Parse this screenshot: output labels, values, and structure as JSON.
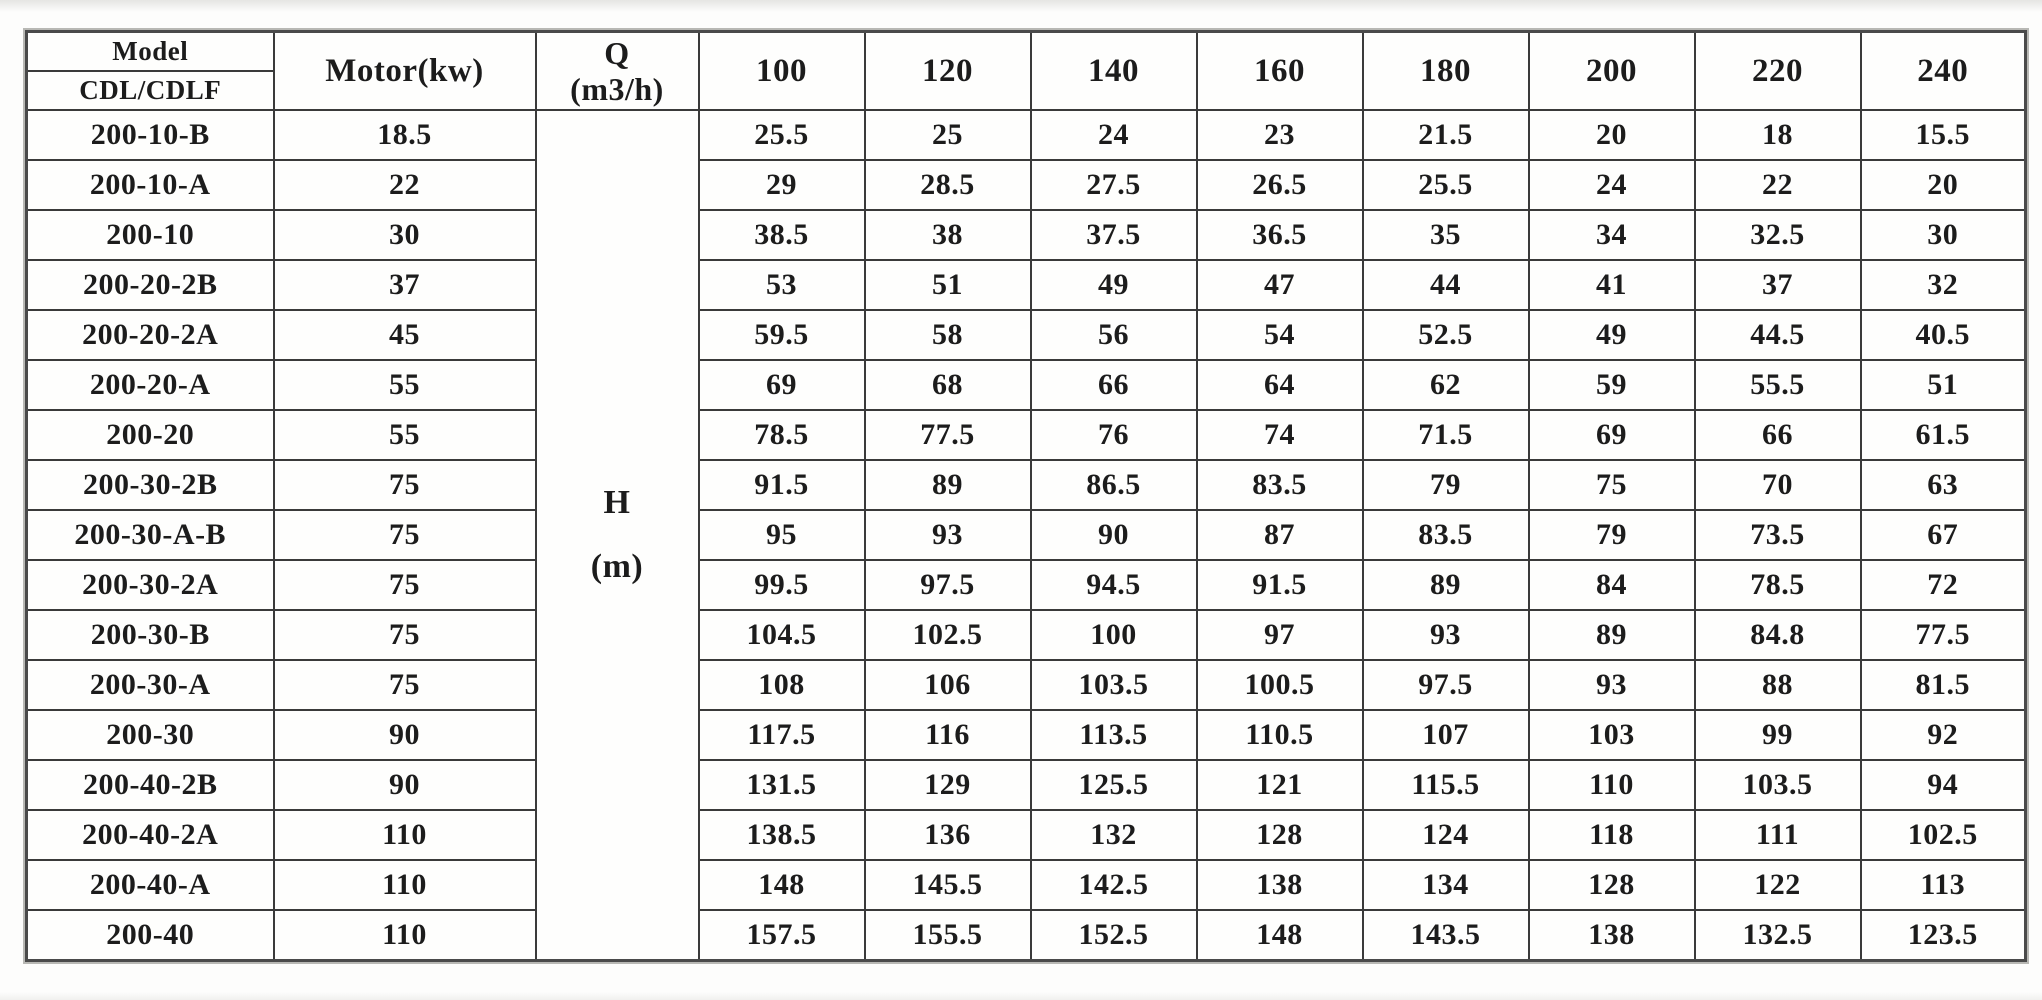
{
  "table": {
    "header": {
      "model_title": "Model",
      "model_subtitle": "CDL/CDLF",
      "motor_label": "Motor(kw)",
      "q_symbol": "Q",
      "q_unit": "(m3/h)",
      "flow_columns": [
        "100",
        "120",
        "140",
        "160",
        "180",
        "200",
        "220",
        "240"
      ]
    },
    "h_axis": {
      "symbol": "H",
      "unit": "(m)"
    },
    "rows": [
      {
        "model": "200-10-B",
        "motor": "18.5",
        "values": [
          "25.5",
          "25",
          "24",
          "23",
          "21.5",
          "20",
          "18",
          "15.5"
        ]
      },
      {
        "model": "200-10-A",
        "motor": "22",
        "values": [
          "29",
          "28.5",
          "27.5",
          "26.5",
          "25.5",
          "24",
          "22",
          "20"
        ]
      },
      {
        "model": "200-10",
        "motor": "30",
        "values": [
          "38.5",
          "38",
          "37.5",
          "36.5",
          "35",
          "34",
          "32.5",
          "30"
        ]
      },
      {
        "model": "200-20-2B",
        "motor": "37",
        "values": [
          "53",
          "51",
          "49",
          "47",
          "44",
          "41",
          "37",
          "32"
        ]
      },
      {
        "model": "200-20-2A",
        "motor": "45",
        "values": [
          "59.5",
          "58",
          "56",
          "54",
          "52.5",
          "49",
          "44.5",
          "40.5"
        ]
      },
      {
        "model": "200-20-A",
        "motor": "55",
        "values": [
          "69",
          "68",
          "66",
          "64",
          "62",
          "59",
          "55.5",
          "51"
        ]
      },
      {
        "model": "200-20",
        "motor": "55",
        "values": [
          "78.5",
          "77.5",
          "76",
          "74",
          "71.5",
          "69",
          "66",
          "61.5"
        ]
      },
      {
        "model": "200-30-2B",
        "motor": "75",
        "values": [
          "91.5",
          "89",
          "86.5",
          "83.5",
          "79",
          "75",
          "70",
          "63"
        ]
      },
      {
        "model": "200-30-A-B",
        "motor": "75",
        "values": [
          "95",
          "93",
          "90",
          "87",
          "83.5",
          "79",
          "73.5",
          "67"
        ]
      },
      {
        "model": "200-30-2A",
        "motor": "75",
        "values": [
          "99.5",
          "97.5",
          "94.5",
          "91.5",
          "89",
          "84",
          "78.5",
          "72"
        ]
      },
      {
        "model": "200-30-B",
        "motor": "75",
        "values": [
          "104.5",
          "102.5",
          "100",
          "97",
          "93",
          "89",
          "84.8",
          "77.5"
        ]
      },
      {
        "model": "200-30-A",
        "motor": "75",
        "values": [
          "108",
          "106",
          "103.5",
          "100.5",
          "97.5",
          "93",
          "88",
          "81.5"
        ]
      },
      {
        "model": "200-30",
        "motor": "90",
        "values": [
          "117.5",
          "116",
          "113.5",
          "110.5",
          "107",
          "103",
          "99",
          "92"
        ]
      },
      {
        "model": "200-40-2B",
        "motor": "90",
        "values": [
          "131.5",
          "129",
          "125.5",
          "121",
          "115.5",
          "110",
          "103.5",
          "94"
        ]
      },
      {
        "model": "200-40-2A",
        "motor": "110",
        "values": [
          "138.5",
          "136",
          "132",
          "128",
          "124",
          "118",
          "111",
          "102.5"
        ]
      },
      {
        "model": "200-40-A",
        "motor": "110",
        "values": [
          "148",
          "145.5",
          "142.5",
          "138",
          "134",
          "128",
          "122",
          "113"
        ]
      },
      {
        "model": "200-40",
        "motor": "110",
        "values": [
          "157.5",
          "155.5",
          "152.5",
          "148",
          "143.5",
          "138",
          "132.5",
          "123.5"
        ]
      }
    ]
  }
}
